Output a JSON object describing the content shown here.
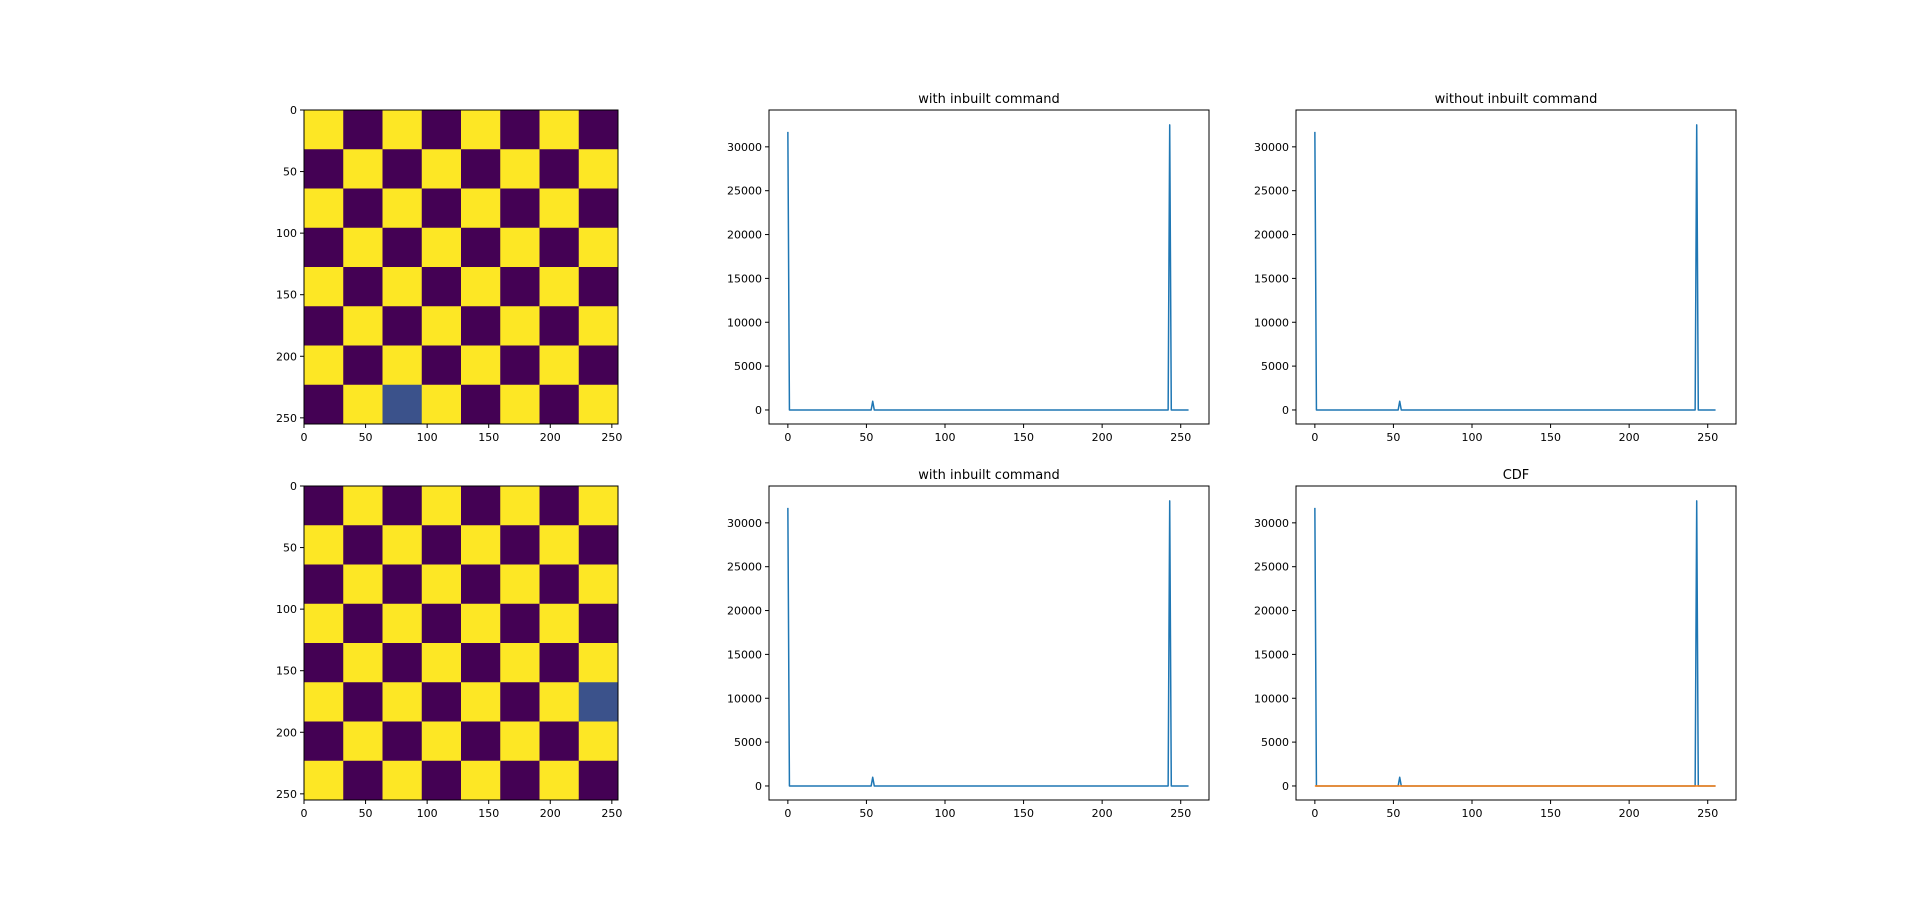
{
  "colors": {
    "viridis_low": "#440154",
    "viridis_high": "#fde725",
    "viridis_mid": "#3b528b",
    "series_blue": "#1f77b4",
    "series_orange": "#ff7f0e"
  },
  "chart_data": [
    {
      "type": "heatmap",
      "panel": "image-top",
      "grid_size": 8,
      "first_cell_high": true,
      "highlight_cell": {
        "row": 7,
        "col": 2
      },
      "xlim": [
        0,
        255
      ],
      "ylim": [
        255,
        0
      ],
      "xticks": [
        0,
        50,
        100,
        150,
        200,
        250
      ],
      "yticks": [
        0,
        50,
        100,
        150,
        200,
        250
      ]
    },
    {
      "type": "line",
      "panel": "hist-top-middle",
      "title": "with inbuilt command",
      "xlim": [
        -12,
        268
      ],
      "ylim": [
        -1600,
        34200
      ],
      "xticks": [
        0,
        50,
        100,
        150,
        200,
        250
      ],
      "yticks": [
        0,
        5000,
        10000,
        15000,
        20000,
        25000,
        30000
      ],
      "series": [
        {
          "color": "#1f77b4",
          "x": [
            0,
            1,
            2,
            53,
            54,
            55,
            242,
            243,
            244,
            255
          ],
          "y": [
            31700,
            0,
            0,
            0,
            1000,
            0,
            0,
            32500,
            0,
            0
          ]
        }
      ]
    },
    {
      "type": "line",
      "panel": "hist-top-right",
      "title": "without inbuilt command",
      "xlim": [
        -12,
        268
      ],
      "ylim": [
        -1600,
        34200
      ],
      "xticks": [
        0,
        50,
        100,
        150,
        200,
        250
      ],
      "yticks": [
        0,
        5000,
        10000,
        15000,
        20000,
        25000,
        30000
      ],
      "series": [
        {
          "color": "#1f77b4",
          "x": [
            0,
            1,
            2,
            53,
            54,
            55,
            242,
            243,
            244,
            255
          ],
          "y": [
            31700,
            0,
            0,
            0,
            1000,
            0,
            0,
            32500,
            0,
            0
          ]
        }
      ]
    },
    {
      "type": "heatmap",
      "panel": "image-bottom",
      "grid_size": 8,
      "first_cell_high": false,
      "highlight_cell": {
        "row": 5,
        "col": 7
      },
      "xlim": [
        0,
        255
      ],
      "ylim": [
        255,
        0
      ],
      "xticks": [
        0,
        50,
        100,
        150,
        200,
        250
      ],
      "yticks": [
        0,
        50,
        100,
        150,
        200,
        250
      ]
    },
    {
      "type": "line",
      "panel": "hist-bottom-middle",
      "title": "with inbuilt command",
      "xlim": [
        -12,
        268
      ],
      "ylim": [
        -1600,
        34200
      ],
      "xticks": [
        0,
        50,
        100,
        150,
        200,
        250
      ],
      "yticks": [
        0,
        5000,
        10000,
        15000,
        20000,
        25000,
        30000
      ],
      "series": [
        {
          "color": "#1f77b4",
          "x": [
            0,
            1,
            2,
            53,
            54,
            55,
            242,
            243,
            244,
            255
          ],
          "y": [
            31700,
            0,
            0,
            0,
            1000,
            0,
            0,
            32500,
            0,
            0
          ]
        }
      ]
    },
    {
      "type": "line",
      "panel": "hist-bottom-right",
      "title": "CDF",
      "xlim": [
        -12,
        268
      ],
      "ylim": [
        -1600,
        34200
      ],
      "xticks": [
        0,
        50,
        100,
        150,
        200,
        250
      ],
      "yticks": [
        0,
        5000,
        10000,
        15000,
        20000,
        25000,
        30000
      ],
      "series": [
        {
          "color": "#1f77b4",
          "x": [
            0,
            1,
            2,
            53,
            54,
            55,
            242,
            243,
            244,
            255
          ],
          "y": [
            31700,
            0,
            0,
            0,
            1000,
            0,
            0,
            32500,
            0,
            0
          ]
        },
        {
          "color": "#ff7f0e",
          "x": [
            0,
            255
          ],
          "y": [
            0,
            0
          ]
        }
      ]
    }
  ]
}
